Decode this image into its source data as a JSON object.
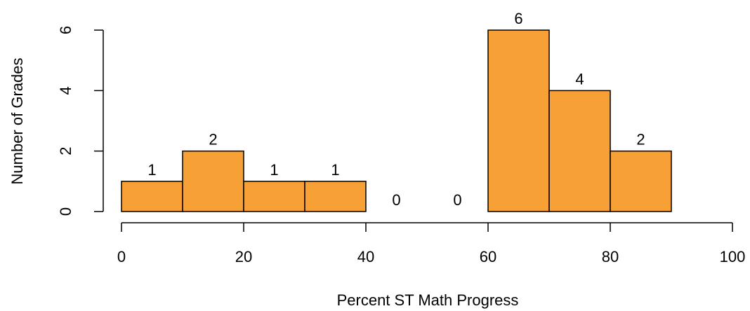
{
  "chart_data": {
    "type": "bar",
    "subtype": "histogram",
    "bins": [
      {
        "start": 0,
        "end": 10,
        "count": 1
      },
      {
        "start": 10,
        "end": 20,
        "count": 2
      },
      {
        "start": 20,
        "end": 30,
        "count": 1
      },
      {
        "start": 30,
        "end": 40,
        "count": 1
      },
      {
        "start": 40,
        "end": 50,
        "count": 0
      },
      {
        "start": 50,
        "end": 60,
        "count": 0
      },
      {
        "start": 60,
        "end": 70,
        "count": 6
      },
      {
        "start": 70,
        "end": 80,
        "count": 4
      },
      {
        "start": 80,
        "end": 90,
        "count": 2
      }
    ],
    "title": "",
    "xlabel": "Percent ST Math Progress",
    "ylabel": "Number of Grades",
    "xlim": [
      0,
      100
    ],
    "ylim": [
      0,
      6
    ],
    "x_ticks": [
      0,
      20,
      40,
      60,
      80,
      100
    ],
    "y_ticks": [
      0,
      2,
      4,
      6
    ],
    "bar_color": "#F7A035",
    "bar_edge_color": "#000000",
    "grid": false,
    "legend": "none",
    "show_value_labels": true
  }
}
